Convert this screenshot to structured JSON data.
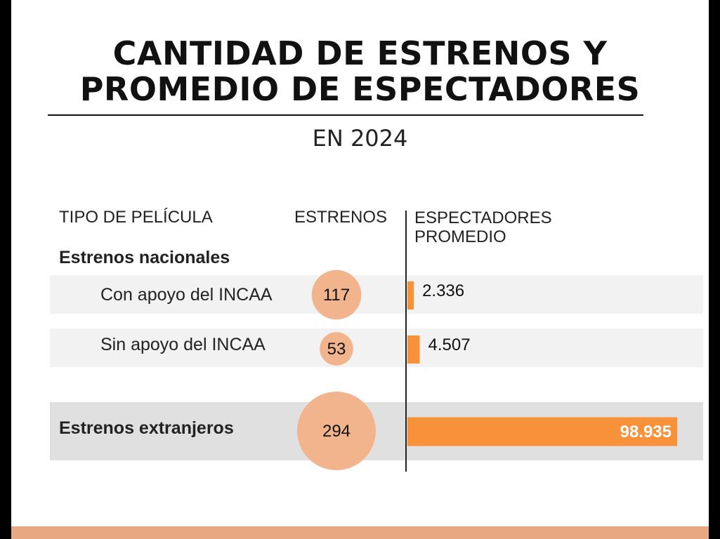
{
  "title_line1": "CANTIDAD DE ESTRENOS Y",
  "title_line2": "PROMEDIO DE ESPECTADORES",
  "subtitle": "EN 2024",
  "headers": {
    "tipo": "TIPO DE PELÍCULA",
    "estrenos": "ESTRENOS",
    "espectadores_line1": "ESPECTADORES",
    "espectadores_line2": "PROMEDIO"
  },
  "group_label": "Estrenos nacionales",
  "rows": [
    {
      "label": "Con apoyo del INCAA",
      "estrenos": "117",
      "espectadores": "2.336"
    },
    {
      "label": "Sin apoyo del INCAA",
      "estrenos": "53",
      "espectadores": "4.507"
    },
    {
      "label": "Estrenos extranjeros",
      "estrenos": "294",
      "espectadores": "98.935"
    }
  ],
  "colors": {
    "bubble": "#f2b48d",
    "bar": "#f7923a",
    "footer": "#e8a882",
    "divider": "#222222"
  },
  "chart_data": {
    "type": "table",
    "categories": [
      "Con apoyo del INCAA",
      "Sin apoyo del INCAA",
      "Estrenos extranjeros"
    ],
    "series": [
      {
        "name": "ESTRENOS",
        "values": [
          117,
          53,
          294
        ]
      },
      {
        "name": "ESPECTADORES PROMEDIO",
        "values": [
          2336,
          4507,
          98935
        ]
      }
    ]
  }
}
